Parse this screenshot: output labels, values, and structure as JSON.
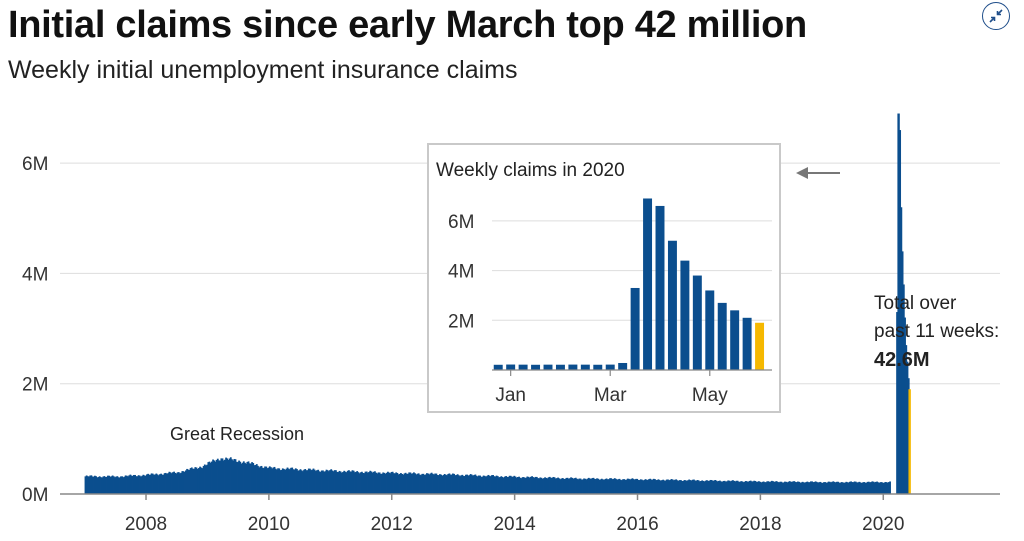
{
  "title": "Initial claims since early March top 42 million",
  "subtitle": "Weekly initial unemployment insurance claims",
  "toolbar": {
    "expand_icon": "collapse-arrows-icon"
  },
  "colors": {
    "bar": "#0b4e8e",
    "highlight": "#f5b800",
    "grid": "#dddddd",
    "axis": "#888888"
  },
  "chart_data": [
    {
      "type": "bar",
      "title": "",
      "xlabel": "",
      "ylabel": "",
      "x_range": [
        2006.6,
        2021.9
      ],
      "ylim": [
        0,
        7000000
      ],
      "yticks": [
        0,
        2000000,
        4000000,
        6000000
      ],
      "ytick_labels": [
        "0M",
        "2M",
        "4M",
        "6M"
      ],
      "xticks": [
        2008,
        2010,
        2012,
        2014,
        2016,
        2018,
        2020
      ],
      "xtick_labels": [
        "2008",
        "2010",
        "2012",
        "2014",
        "2016",
        "2018",
        "2020"
      ],
      "grid": true,
      "series_anchor_points": [
        {
          "year": 2007.0,
          "value": 320000
        },
        {
          "year": 2007.5,
          "value": 315000
        },
        {
          "year": 2008.0,
          "value": 345000
        },
        {
          "year": 2008.5,
          "value": 390000
        },
        {
          "year": 2008.9,
          "value": 500000
        },
        {
          "year": 2009.2,
          "value": 650000
        },
        {
          "year": 2009.5,
          "value": 600000
        },
        {
          "year": 2010.0,
          "value": 470000
        },
        {
          "year": 2011.0,
          "value": 420000
        },
        {
          "year": 2012.0,
          "value": 380000
        },
        {
          "year": 2013.0,
          "value": 350000
        },
        {
          "year": 2014.0,
          "value": 310000
        },
        {
          "year": 2015.0,
          "value": 280000
        },
        {
          "year": 2016.0,
          "value": 265000
        },
        {
          "year": 2017.0,
          "value": 245000
        },
        {
          "year": 2018.0,
          "value": 225000
        },
        {
          "year": 2019.0,
          "value": 215000
        },
        {
          "year": 2020.1,
          "value": 215000
        }
      ],
      "covid_weeks_2020": [
        {
          "year": 2020.21,
          "value": 3300000
        },
        {
          "year": 2020.23,
          "value": 6900000
        },
        {
          "year": 2020.25,
          "value": 6600000
        },
        {
          "year": 2020.27,
          "value": 5200000
        },
        {
          "year": 2020.29,
          "value": 4400000
        },
        {
          "year": 2020.31,
          "value": 3800000
        },
        {
          "year": 2020.33,
          "value": 3200000
        },
        {
          "year": 2020.35,
          "value": 2700000
        },
        {
          "year": 2020.37,
          "value": 2400000
        },
        {
          "year": 2020.39,
          "value": 2100000
        },
        {
          "year": 2020.41,
          "value": 1900000
        }
      ],
      "annotations": [
        {
          "text": "Great Recession"
        },
        {
          "text_lines": [
            "Total over",
            "past 11 weeks:"
          ],
          "value_text": "42.6M"
        }
      ]
    },
    {
      "type": "bar",
      "title": "Weekly claims in 2020",
      "xlabel": "",
      "ylabel": "",
      "ylim": [
        0,
        7000000
      ],
      "yticks": [
        2000000,
        4000000,
        6000000
      ],
      "ytick_labels": [
        "2M",
        "4M",
        "6M"
      ],
      "xtick_labels": [
        {
          "label": "Jan",
          "week_index": 1
        },
        {
          "label": "Mar",
          "week_index": 9
        },
        {
          "label": "May",
          "week_index": 17
        }
      ],
      "grid": true,
      "values": [
        210000,
        220000,
        215000,
        210000,
        215000,
        212000,
        218000,
        215000,
        211000,
        217000,
        282000,
        3300000,
        6900000,
        6600000,
        5200000,
        4400000,
        3800000,
        3200000,
        2700000,
        2400000,
        2100000,
        1900000
      ],
      "highlight_last": true
    }
  ]
}
